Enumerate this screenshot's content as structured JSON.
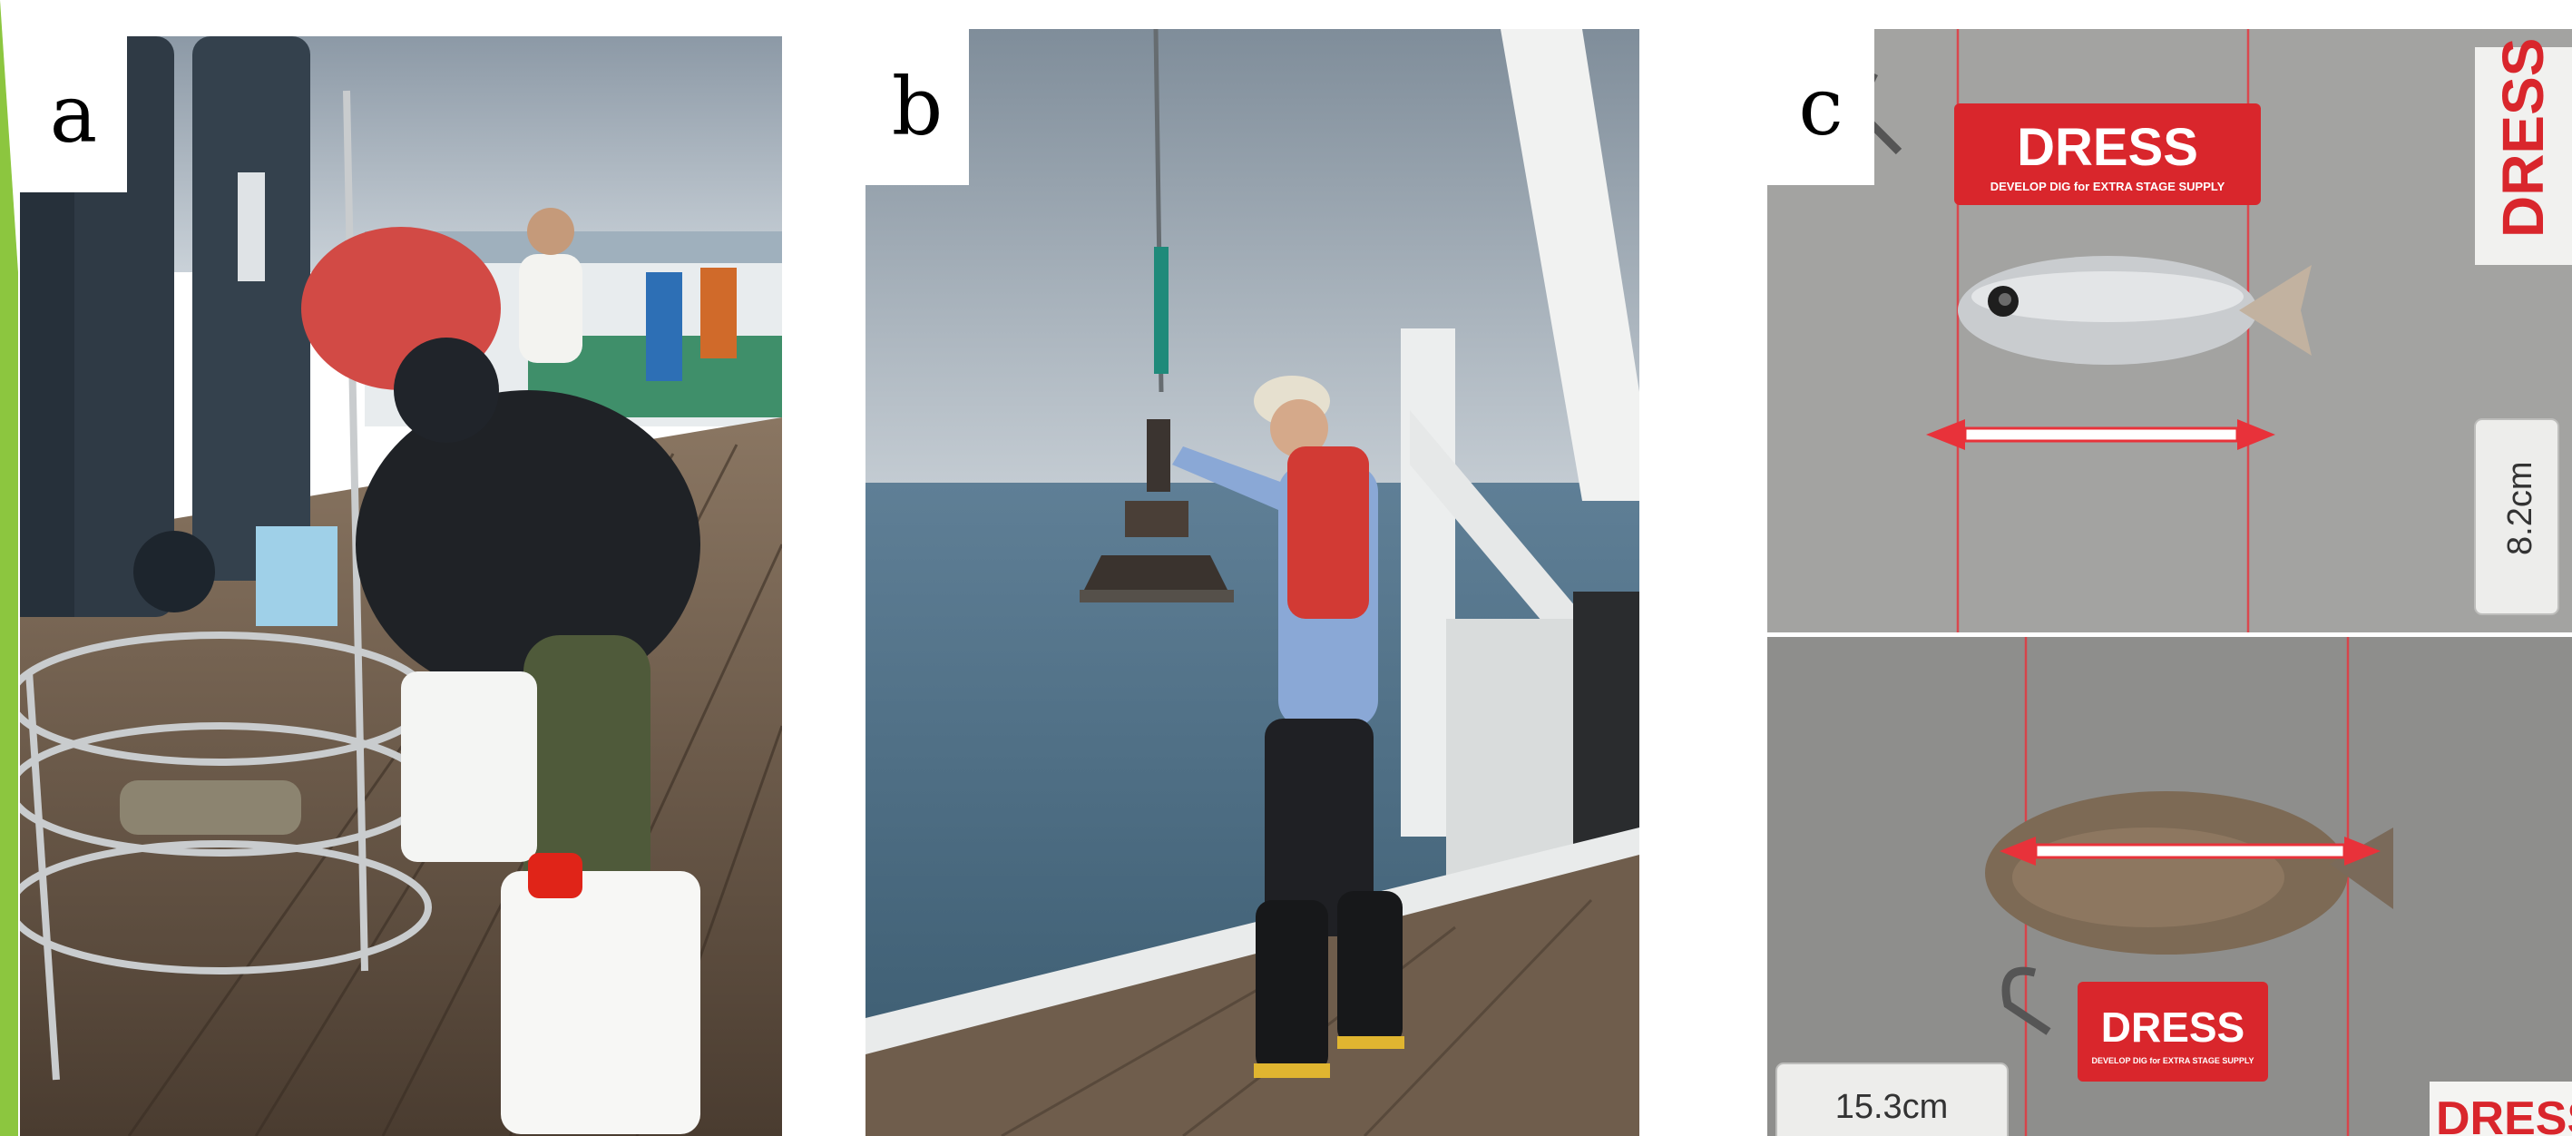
{
  "colors": {
    "accent_bar": "#8cc63f",
    "sky_grey": "#8a98a6",
    "sea_blue": "#4f6f86",
    "deck_wood": "#6e5a48",
    "tag_red": "#d9262c",
    "measure_red": "#e8323a",
    "tray_grey": "#9c9c9a"
  },
  "panels": {
    "a": {
      "label": "a"
    },
    "b": {
      "label": "b"
    },
    "c": {
      "label": "c",
      "top": {
        "tag_text": "DRESS",
        "tag_subtext": "DEVELOP DIG for EXTRA STAGE SUPPLY",
        "side_tag_text": "DRESS",
        "length_label": "8.2cm"
      },
      "bottom": {
        "tag_text": "DRESS",
        "tag_subtext": "DEVELOP DIG for EXTRA STAGE SUPPLY",
        "side_tag_text": "DRESS",
        "length_label": "15.3cm"
      }
    }
  }
}
